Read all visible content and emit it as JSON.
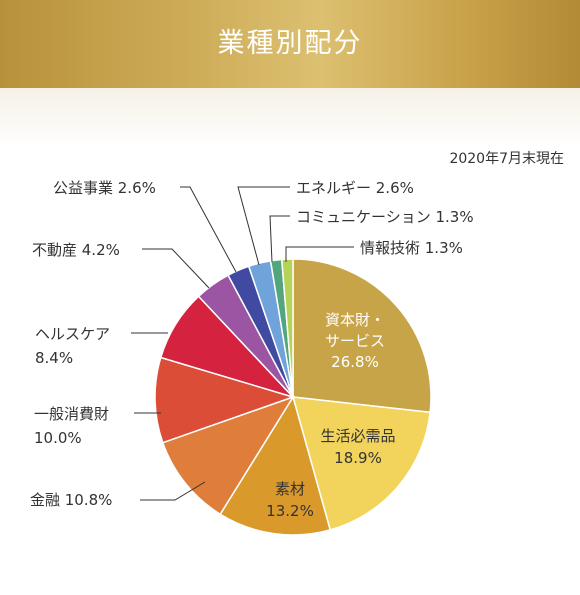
{
  "header": {
    "title": "業種別配分"
  },
  "as_of": "2020年7月末現在",
  "chart_data": {
    "type": "pie",
    "title": "業種別配分",
    "unit": "%",
    "slices": [
      {
        "name": "資本財・サービス",
        "value": 26.8,
        "color": "#c8a448",
        "text": [
          "資本財・",
          "サービス",
          "26.8%"
        ],
        "label_pos": "inside"
      },
      {
        "name": "生活必需品",
        "value": 18.9,
        "color": "#f2d35c",
        "text": [
          "生活必需品",
          "18.9%"
        ],
        "label_pos": "inside"
      },
      {
        "name": "素材",
        "value": 13.2,
        "color": "#d99a2b",
        "text": [
          "素材",
          "13.2%"
        ],
        "label_pos": "inside"
      },
      {
        "name": "金融",
        "value": 10.8,
        "color": "#df7d3a",
        "text": [
          "金融 10.8%"
        ],
        "label_pos": "left"
      },
      {
        "name": "一般消費財",
        "value": 10.0,
        "color": "#dc4d37",
        "text": [
          "一般消費財",
          "10.0%"
        ],
        "label_pos": "left"
      },
      {
        "name": "ヘルスケア",
        "value": 8.4,
        "color": "#d4223f",
        "text": [
          "ヘルスケア",
          "8.4%"
        ],
        "label_pos": "left"
      },
      {
        "name": "不動産",
        "value": 4.2,
        "color": "#9b55a3",
        "text": [
          "不動産 4.2%"
        ],
        "label_pos": "left"
      },
      {
        "name": "公益事業",
        "value": 2.6,
        "color": "#404aa0",
        "text": [
          "公益事業 2.6%"
        ],
        "label_pos": "left"
      },
      {
        "name": "エネルギー",
        "value": 2.6,
        "color": "#6fa3d9",
        "text": [
          "エネルギー 2.6%"
        ],
        "label_pos": "right"
      },
      {
        "name": "コミュニケーション",
        "value": 1.3,
        "color": "#52a57d",
        "text": [
          "コミュニケーション 1.3%"
        ],
        "label_pos": "right"
      },
      {
        "name": "情報技術",
        "value": 1.3,
        "color": "#b5d357",
        "text": [
          "情報技術 1.3%"
        ],
        "label_pos": "right"
      }
    ]
  }
}
